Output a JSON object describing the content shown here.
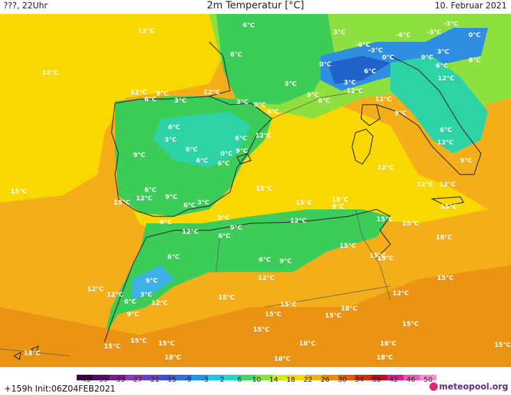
{
  "header": {
    "left": "???, 22Uhr",
    "title": "2m Temperatur [°C]",
    "date": "10. Februar 2021"
  },
  "map": {
    "labels": [
      {
        "t": "6°C"
      },
      {
        "t": "3°C"
      },
      {
        "t": "-6°C"
      },
      {
        "t": "-3°C"
      },
      {
        "t": "-3°C"
      },
      {
        "t": "0°C"
      },
      {
        "t": "12°C"
      },
      {
        "t": "6°C"
      },
      {
        "t": "-6°C"
      },
      {
        "t": "-3°C"
      },
      {
        "t": "3°C"
      },
      {
        "t": "6°C"
      },
      {
        "t": "12°C"
      },
      {
        "t": "0°C"
      },
      {
        "t": "0°C"
      },
      {
        "t": "9°C"
      },
      {
        "t": "6°C"
      },
      {
        "t": "6°C"
      },
      {
        "t": "3°C"
      },
      {
        "t": "3°C"
      },
      {
        "t": "12°C"
      },
      {
        "t": "12°C"
      },
      {
        "t": "12°C"
      },
      {
        "t": "9°C"
      },
      {
        "t": "6°C"
      },
      {
        "t": "3°C"
      },
      {
        "t": "3°C"
      },
      {
        "t": "0°C"
      },
      {
        "t": "6°C"
      },
      {
        "t": "9°C"
      },
      {
        "t": "6°C"
      },
      {
        "t": "12°C"
      },
      {
        "t": "9°C"
      },
      {
        "t": "12°C"
      },
      {
        "t": "6°C"
      },
      {
        "t": "6°C"
      },
      {
        "t": "3°C"
      },
      {
        "t": "12°C"
      },
      {
        "t": "6°C"
      },
      {
        "t": "6°C"
      },
      {
        "t": "6°C"
      },
      {
        "t": "0°C"
      },
      {
        "t": "9°C"
      },
      {
        "t": "12°C"
      },
      {
        "t": "9°C"
      },
      {
        "t": "6°C"
      },
      {
        "t": "9°C"
      },
      {
        "t": "12°C"
      },
      {
        "t": "15°C"
      },
      {
        "t": "6°C"
      },
      {
        "t": "15°C"
      },
      {
        "t": "15°C"
      },
      {
        "t": "12°C"
      },
      {
        "t": "9°C"
      },
      {
        "t": "12°C"
      },
      {
        "t": "6°C"
      },
      {
        "t": "3°C"
      },
      {
        "t": "12°C"
      },
      {
        "t": "6°C"
      },
      {
        "t": "9°C"
      },
      {
        "t": "15°C"
      },
      {
        "t": "15°C"
      },
      {
        "t": "9°C"
      },
      {
        "t": "15°C"
      },
      {
        "t": "15°C"
      },
      {
        "t": "12°C"
      },
      {
        "t": "6°C"
      },
      {
        "t": "12°C"
      },
      {
        "t": "9°C"
      },
      {
        "t": "6°C"
      },
      {
        "t": "9°C"
      },
      {
        "t": "6°C"
      },
      {
        "t": "12°C"
      },
      {
        "t": "15°C"
      },
      {
        "t": "15°C"
      },
      {
        "t": "18°C"
      },
      {
        "t": "15°C"
      },
      {
        "t": "15°C"
      },
      {
        "t": "9°C"
      },
      {
        "t": "12°C"
      },
      {
        "t": "6°C"
      },
      {
        "t": "3°C"
      },
      {
        "t": "12°C"
      },
      {
        "t": "12°C"
      },
      {
        "t": "15°C"
      },
      {
        "t": "15°C"
      },
      {
        "t": "18°C"
      },
      {
        "t": "9°C"
      },
      {
        "t": "15°C"
      },
      {
        "t": "15°C"
      },
      {
        "t": "15°C"
      },
      {
        "t": "15°C"
      },
      {
        "t": "15°C"
      },
      {
        "t": "15°C"
      },
      {
        "t": "18°C"
      },
      {
        "t": "18°C"
      },
      {
        "t": "18°C"
      },
      {
        "t": "18°C"
      },
      {
        "t": "18°C"
      },
      {
        "t": "18°C"
      },
      {
        "t": "15°C"
      },
      {
        "t": "15°C"
      },
      {
        "t": "12°C"
      },
      {
        "t": "15°C"
      }
    ]
  },
  "legend": {
    "ticks": [
      "-45",
      "-39",
      "-33",
      "-27",
      "-21",
      "-15",
      "-9",
      "-3",
      "2",
      "6",
      "10",
      "14",
      "18",
      "22",
      "26",
      "30",
      "34",
      "38",
      "42",
      "46",
      "50"
    ],
    "colors": [
      "#3a0045",
      "#5a0a6e",
      "#7a1a96",
      "#8f3ab8",
      "#6a3fc9",
      "#3f4fd4",
      "#2b6fe0",
      "#1d96ee",
      "#20c0f0",
      "#22d8c0",
      "#3cd862",
      "#8ae23a",
      "#d6e81a",
      "#f4d810",
      "#f4b00e",
      "#f08a0a",
      "#e45c08",
      "#d22e08",
      "#c0101e",
      "#d8208c",
      "#ee5ab8",
      "#f58fd2"
    ]
  },
  "footer": {
    "init": "+159h  Init:06Z04FEB2021",
    "brand": "meteopool.org"
  },
  "colors": {
    "warm": "#f3ae1a",
    "mild": "#f8d800",
    "cool": "#a8dc30",
    "green": "#3ccc58",
    "teal": "#2dd3a6",
    "blue": "#2f8ee0",
    "ice": "#3fb1ea"
  }
}
